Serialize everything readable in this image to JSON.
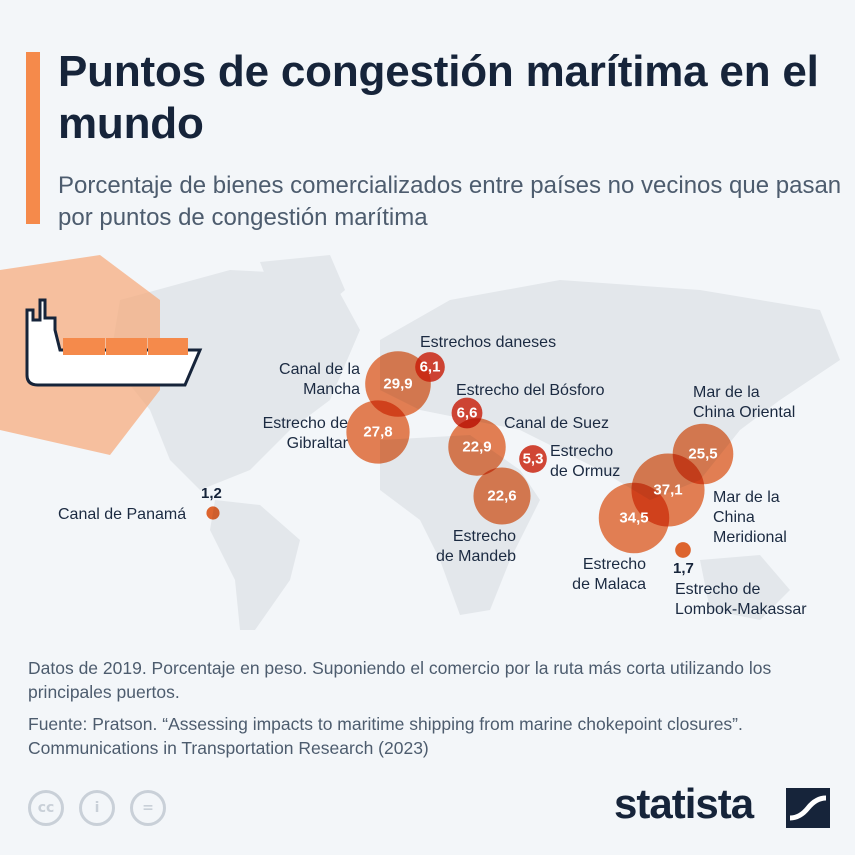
{
  "header": {
    "title": "Puntos de congestión marítima en el mundo",
    "subtitle": "Porcentaje de bienes comercializados entre países no vecinos que pasan por puntos de congestión marítima"
  },
  "chart_data": {
    "type": "bubble-map",
    "title": "Puntos de congestión marítima en el mundo",
    "subtitle": "Porcentaje de bienes comercializados entre países no vecinos que pasan por puntos de congestión marítima",
    "unit": "%",
    "bubble_color": "#e8682f",
    "points": [
      {
        "name": "Canal de la Mancha",
        "value": 29.9,
        "label": "29,9"
      },
      {
        "name": "Estrechos daneses",
        "value": 6.1,
        "label": "6,1"
      },
      {
        "name": "Estrecho de Gibraltar",
        "value": 27.8,
        "label": "27,8"
      },
      {
        "name": "Estrecho del Bósforo",
        "value": 6.6,
        "label": "6,6"
      },
      {
        "name": "Canal de Suez",
        "value": 22.9,
        "label": "22,9"
      },
      {
        "name": "Estrecho de Ormuz",
        "value": 5.3,
        "label": "5,3"
      },
      {
        "name": "Estrecho de Mandeb",
        "value": 22.6,
        "label": "22,6"
      },
      {
        "name": "Estrecho de Malaca",
        "value": 34.5,
        "label": "34,5"
      },
      {
        "name": "Mar de la China Meridional",
        "value": 37.1,
        "label": "37,1"
      },
      {
        "name": "Mar de la China Oriental",
        "value": 25.5,
        "label": "25,5"
      },
      {
        "name": "Canal de Panamá",
        "value": 1.2,
        "label": "1,2"
      },
      {
        "name": "Estrecho de Lombok-Makassar",
        "value": 1.7,
        "label": "1,7"
      }
    ],
    "point_labels": {
      "mancha": "Canal de la\nMancha",
      "daneses": "Estrechos daneses",
      "gibraltar": "Estrecho de\nGibraltar",
      "bosforo": "Estrecho del Bósforo",
      "suez": "Canal de Suez",
      "ormuz": "Estrecho\nde Ormuz",
      "mandeb": "Estrecho\nde Mandeb",
      "malaca": "Estrecho\nde Malaca",
      "meridional": "Mar de la\nChina\nMeridional",
      "oriental": "Mar de la\nChina Oriental",
      "panama": "Canal de Panamá",
      "lombok": "Estrecho de\nLombok-Makassar"
    }
  },
  "footer": {
    "note": "Datos de 2019. Porcentaje en peso. Suponiendo el comercio por la ruta más corta utilizando los principales puertos.",
    "source": "Fuente: Pratson. “Assessing impacts to maritime shipping from marine chokepoint closures”. Communications in Transportation Research (2023)",
    "license_icons": [
      "cc-icon",
      "attribution-icon",
      "no-derivatives-icon"
    ],
    "logo": "statista"
  },
  "colors": {
    "accent": "#f58a4b",
    "bubble": "#e8682f",
    "overlap": "#c81e0a",
    "title": "#16243a"
  }
}
